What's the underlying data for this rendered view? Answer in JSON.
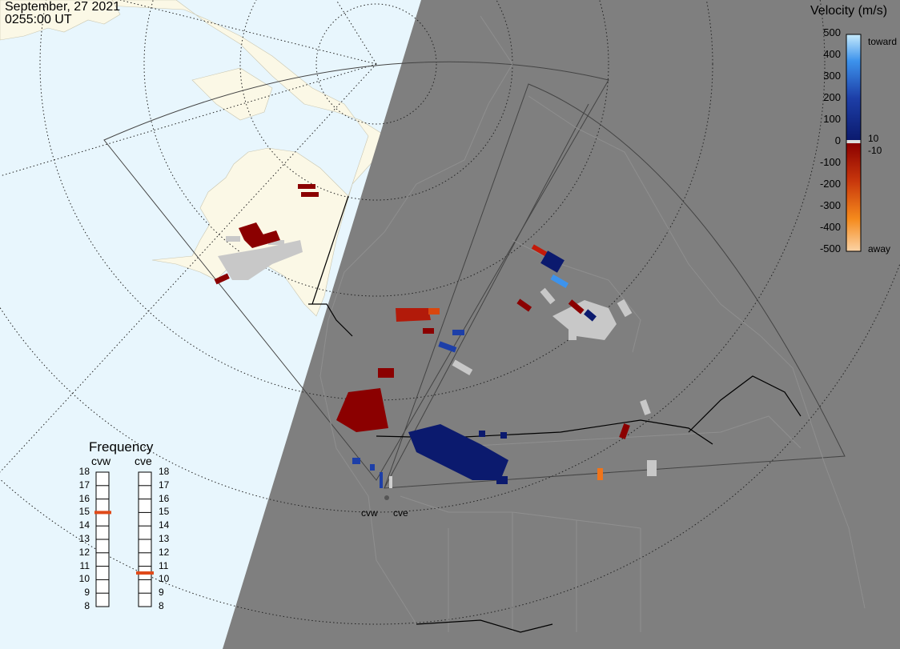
{
  "header": {
    "date": "September, 27 2021",
    "time": "0255:00 UT"
  },
  "colorbar": {
    "title": "Velocity (m/s)",
    "ticks": [
      "500",
      "400",
      "300",
      "200",
      "100",
      "0",
      "-100",
      "-200",
      "-300",
      "-400",
      "-500"
    ],
    "label_toward": "toward",
    "label_away": "away",
    "label_pos": "10",
    "label_neg": "-10",
    "colors": [
      "#0b1a6e",
      "#1d3fa8",
      "#2c67d4",
      "#3d93ec",
      "#a6dcf8",
      "#8b0000",
      "#b21a0a",
      "#d9470e",
      "#f58a1c",
      "#fbd3a6"
    ]
  },
  "frequency": {
    "title": "Frequency",
    "radars": [
      "cvw",
      "cve"
    ],
    "scale": [
      "18",
      "17",
      "16",
      "15",
      "14",
      "13",
      "12",
      "11",
      "10",
      "9",
      "8"
    ],
    "selected_mhz": {
      "cvw": 15,
      "cve": 10.5
    },
    "indicator_color": "#e04a1a"
  },
  "radar_sites": [
    "cvw",
    "cve"
  ],
  "map": {
    "ocean_color": "#e8f6fd",
    "land_day_color": "#fbf8e6",
    "night_color": "#7f7f7f",
    "ground_scatter_color": "#c8c8c8"
  }
}
